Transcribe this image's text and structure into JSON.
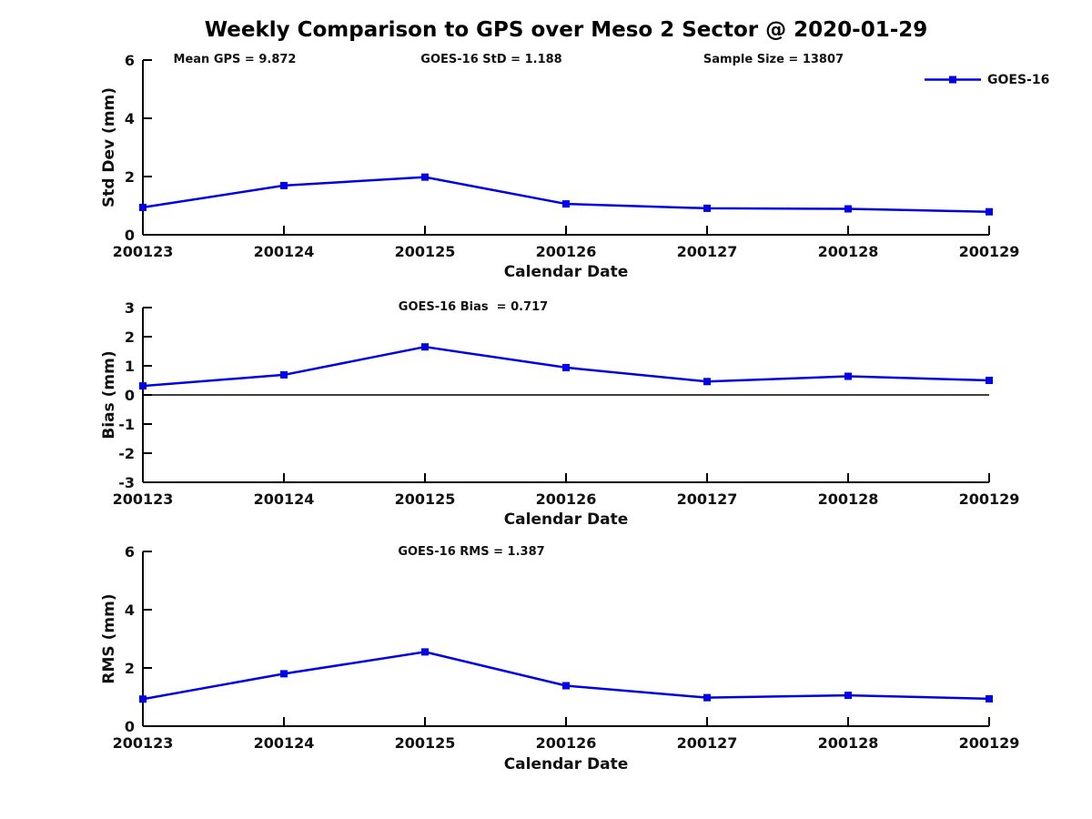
{
  "page_title": "Weekly Comparison to GPS over Meso 2 Sector @ 2020-01-29",
  "legend": {
    "label": "GOES-16"
  },
  "colors": {
    "series": "#0000E6",
    "axis": "#000000",
    "text": "#111111"
  },
  "chart_data": [
    {
      "type": "line",
      "title": "",
      "xlabel": "Calendar Date",
      "ylabel": "Std Dev (mm)",
      "categories": [
        "200123",
        "200124",
        "200125",
        "200126",
        "200127",
        "200128",
        "200129"
      ],
      "series": [
        {
          "name": "GOES-16",
          "marker": "square",
          "values": [
            0.94,
            1.69,
            1.98,
            1.06,
            0.91,
            0.89,
            0.79
          ]
        }
      ],
      "ylim": [
        0,
        6
      ],
      "yticks": [
        0,
        2,
        4,
        6
      ],
      "grid": false,
      "legend_position": "top-right",
      "annotations": [
        "Mean GPS = 9.872",
        "GOES-16 StD = 1.188",
        "Sample Size = 13807"
      ]
    },
    {
      "type": "line",
      "title": "",
      "xlabel": "Calendar Date",
      "ylabel": "Bias (mm)",
      "categories": [
        "200123",
        "200124",
        "200125",
        "200126",
        "200127",
        "200128",
        "200129"
      ],
      "series": [
        {
          "name": "GOES-16",
          "marker": "square",
          "values": [
            0.31,
            0.69,
            1.65,
            0.94,
            0.46,
            0.64,
            0.5
          ]
        }
      ],
      "ylim": [
        -3,
        3
      ],
      "yticks": [
        -3,
        -2,
        -1,
        0,
        1,
        2,
        3
      ],
      "zero_line": true,
      "grid": false,
      "annotations": [
        "GOES-16 Bias  = 0.717"
      ]
    },
    {
      "type": "line",
      "title": "",
      "xlabel": "Calendar Date",
      "ylabel": "RMS (mm)",
      "categories": [
        "200123",
        "200124",
        "200125",
        "200126",
        "200127",
        "200128",
        "200129"
      ],
      "series": [
        {
          "name": "GOES-16",
          "marker": "square",
          "values": [
            0.93,
            1.8,
            2.55,
            1.39,
            0.98,
            1.06,
            0.94
          ]
        }
      ],
      "ylim": [
        0,
        6
      ],
      "yticks": [
        0,
        2,
        4,
        6
      ],
      "grid": false,
      "annotations": [
        "GOES-16 RMS = 1.387"
      ]
    }
  ]
}
